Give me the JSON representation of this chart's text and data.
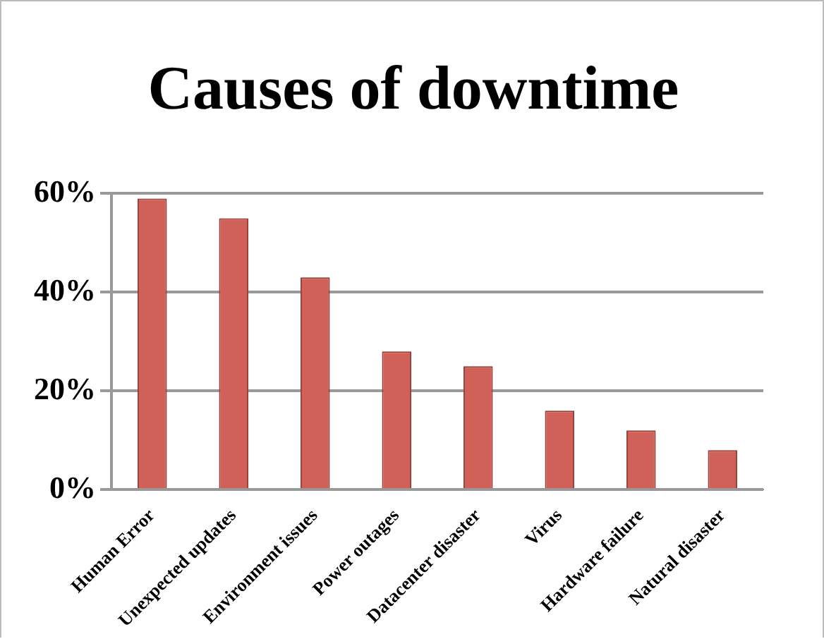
{
  "chart_data": {
    "type": "bar",
    "title": "Causes of downtime",
    "categories": [
      "Human Error",
      "Unexpected updates",
      "Environment issues",
      "Power outages",
      "Datacenter disaster",
      "Virus",
      "Hardware failure",
      "Natural disaster"
    ],
    "values": [
      59,
      55,
      43,
      28,
      25,
      16,
      12,
      8
    ],
    "color": "#cf6158",
    "ylim": [
      0,
      60
    ],
    "yticks": [
      {
        "value": 0,
        "label": "0%"
      },
      {
        "value": 20,
        "label": "20%"
      },
      {
        "value": 40,
        "label": "40%"
      },
      {
        "value": 60,
        "label": "60%"
      }
    ],
    "grid": "y"
  }
}
